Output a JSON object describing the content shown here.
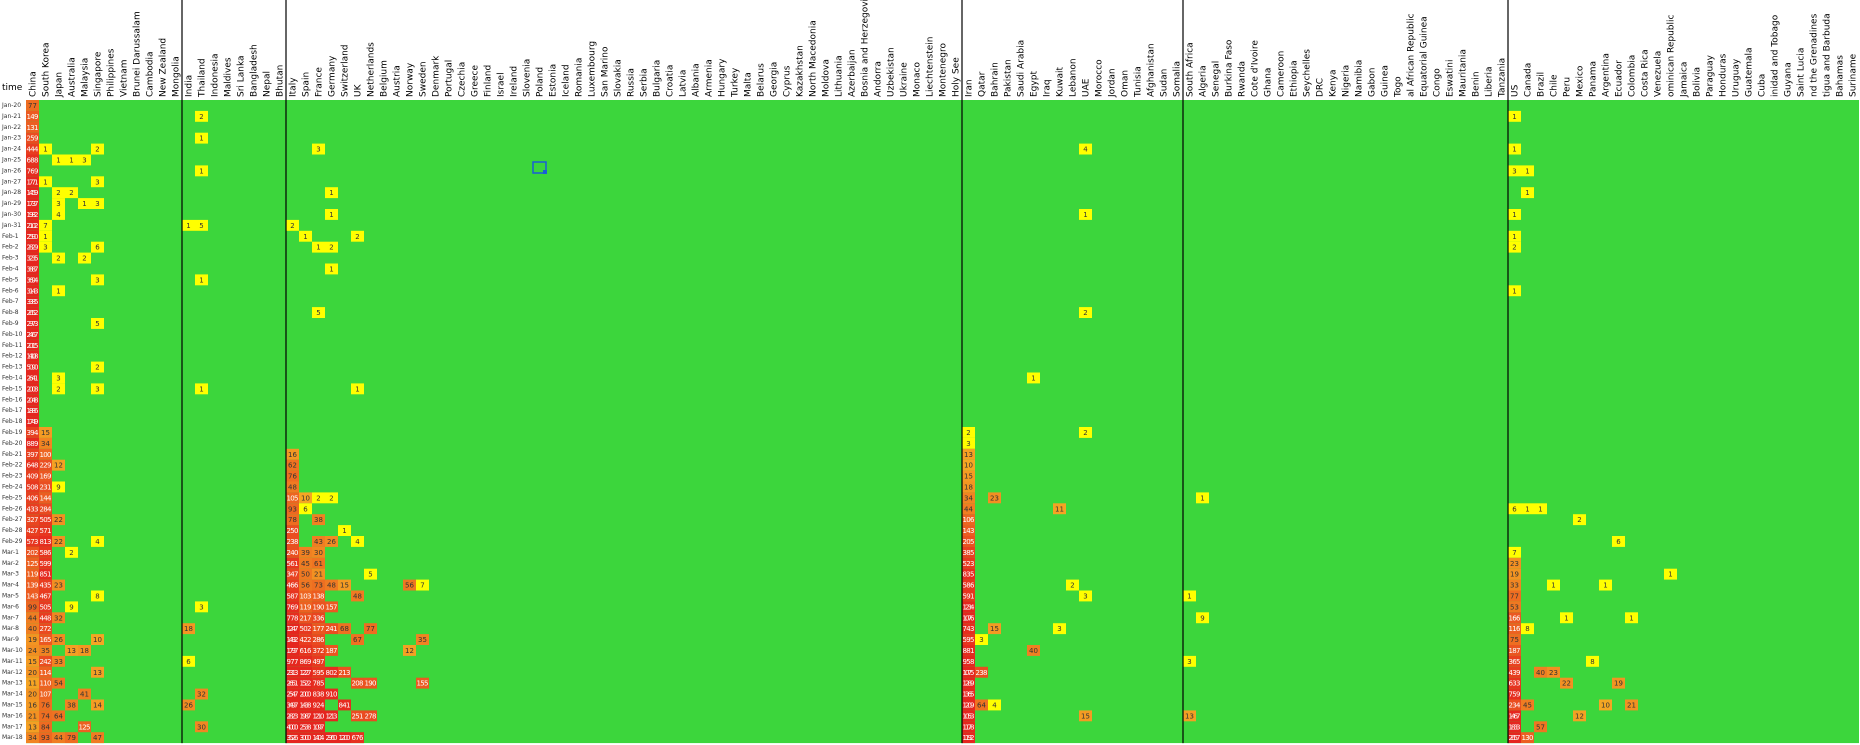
{
  "time_label": "time",
  "dates": [
    "Jan-20",
    "Jan-21",
    "Jan-22",
    "Jan-23",
    "Jan-24",
    "Jan-25",
    "Jan-26",
    "Jan-27",
    "Jan-28",
    "Jan-29",
    "Jan-30",
    "Jan-31",
    "Feb-1",
    "Feb-2",
    "Feb-3",
    "Feb-4",
    "Feb-5",
    "Feb-6",
    "Feb-7",
    "Feb-8",
    "Feb-9",
    "Feb-10",
    "Feb-11",
    "Feb-12",
    "Feb-13",
    "Feb-14",
    "Feb-15",
    "Feb-16",
    "Feb-17",
    "Feb-18",
    "Feb-19",
    "Feb-20",
    "Feb-21",
    "Feb-22",
    "Feb-23",
    "Feb-24",
    "Feb-25",
    "Feb-26",
    "Feb-27",
    "Feb-28",
    "Feb-29",
    "Mar-1",
    "Mar-2",
    "Mar-3",
    "Mar-4",
    "Mar-5",
    "Mar-6",
    "Mar-7",
    "Mar-8",
    "Mar-9",
    "Mar-10",
    "Mar-11",
    "Mar-12",
    "Mar-13",
    "Mar-14",
    "Mar-15",
    "Mar-16",
    "Mar-17",
    "Mar-18"
  ],
  "groups": [
    {
      "countries": [
        "China",
        "South Korea",
        "Japan",
        "Australia",
        "Malaysia",
        "Singapore",
        "Philippines",
        "Vietnam",
        "Brunei Darussalam",
        "Cambodia",
        "New Zealand",
        "Mongolia"
      ]
    },
    {
      "countries": [
        "India",
        "Thailand",
        "Indonesia",
        "Maldives",
        "Sri Lanka",
        "Bangladesh",
        "Nepal",
        "Bhutan"
      ]
    },
    {
      "countries": [
        "Italy",
        "Spain",
        "France",
        "Germany",
        "Switzerland",
        "UK",
        "Netherlands",
        "Belgium",
        "Austria",
        "Norway",
        "Sweden",
        "Denmark",
        "Portugal",
        "Czechia",
        "Greece",
        "Finland",
        "Israel",
        "Ireland",
        "Slovenia",
        "Poland",
        "Estonia",
        "Iceland",
        "Romania",
        "Luxembourg",
        "San Marino",
        "Slovakia",
        "Russia",
        "Serbia",
        "Bulgaria",
        "Croatia",
        "Latvia",
        "Albania",
        "Armenia",
        "Hungary",
        "Turkey",
        "Malta",
        "Belarus",
        "Georgia",
        "Cyprus",
        "Kazakhstan",
        "North Macedonia",
        "Moldova",
        "Lithuania",
        "Azerbaijan",
        "Bosnia and Herzegovina",
        "Andorra",
        "Uzbekistan",
        "Ukraine",
        "Monaco",
        "Liechtenstein",
        "Montenegro",
        "Holy See"
      ]
    },
    {
      "countries": [
        "Iran",
        "Qatar",
        "Bahrain",
        "Pakistan",
        "Saudi Arabia",
        "Egypt",
        "Iraq",
        "Kuwait",
        "Lebanon",
        "UAE",
        "Morocco",
        "Jordan",
        "Oman",
        "Tunisia",
        "Afghanistan",
        "Sudan",
        "Somalia"
      ]
    },
    {
      "countries": [
        "South Africa",
        "Algeria",
        "Senegal",
        "Burkina Faso",
        "Rwanda",
        "Cote d'Ivoire",
        "Ghana",
        "Cameroon",
        "Ethiopia",
        "Seychelles",
        "DRC",
        "Kenya",
        "Nigeria",
        "Namibia",
        "Gabon",
        "Guinea",
        "Togo",
        "al African Republic",
        "Equatorial Guinea",
        "Congo",
        "Eswatini",
        "Mauritania",
        "Benin",
        "Liberia",
        "Tanzania"
      ]
    },
    {
      "countries": [
        "US",
        "Canada",
        "Brazil",
        "Chile",
        "Peru",
        "Mexico",
        "Panama",
        "Argentina",
        "Ecuador",
        "Colombia",
        "Costa Rica",
        "Venezuela",
        "ominican Republic",
        "Jamaica",
        "Bolivia",
        "Paraguay",
        "Honduras",
        "Uruguay",
        "Guatemala",
        "Cuba",
        "inidad and Tobago",
        "Guyana",
        "Saint Lucia",
        "nd the Grenadines",
        "tigua and Barbuda",
        "Bahamas",
        "Suriname"
      ]
    }
  ],
  "colors": {
    "background": "#3cd63c",
    "low": "#ffff00",
    "mid": "#f5a623",
    "high": "#e5261f"
  },
  "cells": [
    [
      0,
      0,
      77
    ],
    [
      1,
      0,
      149
    ],
    [
      2,
      0,
      131
    ],
    [
      3,
      0,
      259
    ],
    [
      4,
      0,
      444
    ],
    [
      5,
      0,
      688
    ],
    [
      6,
      0,
      769
    ],
    [
      7,
      0,
      1771
    ],
    [
      8,
      0,
      1459
    ],
    [
      9,
      0,
      1737
    ],
    [
      10,
      0,
      1982
    ],
    [
      11,
      0,
      2102
    ],
    [
      12,
      0,
      2590
    ],
    [
      13,
      0,
      2829
    ],
    [
      14,
      0,
      3235
    ],
    [
      15,
      0,
      3887
    ],
    [
      16,
      0,
      3694
    ],
    [
      17,
      0,
      3143
    ],
    [
      18,
      0,
      3385
    ],
    [
      19,
      0,
      2652
    ],
    [
      20,
      0,
      2973
    ],
    [
      21,
      0,
      2467
    ],
    [
      22,
      0,
      2015
    ],
    [
      23,
      0,
      14108
    ],
    [
      24,
      0,
      5090
    ],
    [
      25,
      0,
      2641
    ],
    [
      26,
      0,
      2008
    ],
    [
      27,
      0,
      2048
    ],
    [
      28,
      0,
      1886
    ],
    [
      29,
      0,
      1749
    ],
    [
      30,
      0,
      394
    ],
    [
      31,
      0,
      889
    ],
    [
      32,
      0,
      397
    ],
    [
      33,
      0,
      648
    ],
    [
      34,
      0,
      409
    ],
    [
      35,
      0,
      508
    ],
    [
      36,
      0,
      406
    ],
    [
      37,
      0,
      433
    ],
    [
      38,
      0,
      327
    ],
    [
      39,
      0,
      427
    ],
    [
      40,
      0,
      573
    ],
    [
      41,
      0,
      202
    ],
    [
      42,
      0,
      125
    ],
    [
      43,
      0,
      119
    ],
    [
      44,
      0,
      139
    ],
    [
      45,
      0,
      143
    ],
    [
      46,
      0,
      99
    ],
    [
      47,
      0,
      44
    ],
    [
      48,
      0,
      40
    ],
    [
      49,
      0,
      19
    ],
    [
      50,
      0,
      24
    ],
    [
      51,
      0,
      15
    ],
    [
      52,
      0,
      20
    ],
    [
      53,
      0,
      11
    ],
    [
      54,
      0,
      20
    ],
    [
      55,
      0,
      16
    ],
    [
      56,
      0,
      21
    ],
    [
      57,
      0,
      13
    ],
    [
      58,
      0,
      34
    ],
    [
      4,
      1,
      1
    ],
    [
      7,
      1,
      1
    ],
    [
      11,
      1,
      7
    ],
    [
      12,
      1,
      1
    ],
    [
      13,
      1,
      3
    ],
    [
      30,
      1,
      15
    ],
    [
      31,
      1,
      34
    ],
    [
      32,
      1,
      100
    ],
    [
      33,
      1,
      229
    ],
    [
      34,
      1,
      169
    ],
    [
      35,
      1,
      231
    ],
    [
      36,
      1,
      144
    ],
    [
      37,
      1,
      284
    ],
    [
      38,
      1,
      505
    ],
    [
      39,
      1,
      571
    ],
    [
      40,
      1,
      813
    ],
    [
      41,
      1,
      586
    ],
    [
      42,
      1,
      599
    ],
    [
      43,
      1,
      851
    ],
    [
      44,
      1,
      435
    ],
    [
      45,
      1,
      467
    ],
    [
      46,
      1,
      505
    ],
    [
      47,
      1,
      448
    ],
    [
      48,
      1,
      272
    ],
    [
      49,
      1,
      165
    ],
    [
      50,
      1,
      35
    ],
    [
      51,
      1,
      242
    ],
    [
      52,
      1,
      114
    ],
    [
      53,
      1,
      110
    ],
    [
      54,
      1,
      107
    ],
    [
      55,
      1,
      76
    ],
    [
      56,
      1,
      74
    ],
    [
      57,
      1,
      84
    ],
    [
      58,
      1,
      93
    ],
    [
      5,
      2,
      1
    ],
    [
      8,
      2,
      2
    ],
    [
      9,
      2,
      3
    ],
    [
      10,
      2,
      4
    ],
    [
      14,
      2,
      2
    ],
    [
      17,
      2,
      1
    ],
    [
      25,
      2,
      3
    ],
    [
      26,
      2,
      2
    ],
    [
      33,
      2,
      12
    ],
    [
      35,
      2,
      9
    ],
    [
      38,
      2,
      22
    ],
    [
      40,
      2,
      22
    ],
    [
      44,
      2,
      23
    ],
    [
      47,
      2,
      32
    ],
    [
      49,
      2,
      26
    ],
    [
      51,
      2,
      33
    ],
    [
      53,
      2,
      54
    ],
    [
      56,
      2,
      64
    ],
    [
      58,
      2,
      44
    ],
    [
      5,
      3,
      1
    ],
    [
      8,
      3,
      2
    ],
    [
      41,
      3,
      2
    ],
    [
      46,
      3,
      9
    ],
    [
      50,
      3,
      13
    ],
    [
      55,
      3,
      38
    ],
    [
      58,
      3,
      79
    ],
    [
      5,
      4,
      3
    ],
    [
      9,
      4,
      1
    ],
    [
      14,
      4,
      2
    ],
    [
      50,
      4,
      18
    ],
    [
      54,
      4,
      41
    ],
    [
      57,
      4,
      125
    ],
    [
      4,
      5,
      2
    ],
    [
      7,
      5,
      3
    ],
    [
      9,
      5,
      3
    ],
    [
      13,
      5,
      6
    ],
    [
      16,
      5,
      3
    ],
    [
      20,
      5,
      5
    ],
    [
      24,
      5,
      2
    ],
    [
      26,
      5,
      3
    ],
    [
      40,
      5,
      4
    ],
    [
      45,
      5,
      8
    ],
    [
      49,
      5,
      10
    ],
    [
      52,
      5,
      13
    ],
    [
      55,
      5,
      14
    ],
    [
      58,
      5,
      47
    ],
    [
      11,
      12,
      1
    ],
    [
      48,
      12,
      18
    ],
    [
      51,
      12,
      6
    ],
    [
      55,
      12,
      26
    ],
    [
      1,
      13,
      2
    ],
    [
      3,
      13,
      1
    ],
    [
      6,
      13,
      1
    ],
    [
      11,
      13,
      5
    ],
    [
      16,
      13,
      1
    ],
    [
      26,
      13,
      1
    ],
    [
      46,
      13,
      3
    ],
    [
      54,
      13,
      32
    ],
    [
      57,
      13,
      30
    ],
    [
      11,
      20,
      2
    ],
    [
      32,
      20,
      16
    ],
    [
      33,
      20,
      62
    ],
    [
      34,
      20,
      76
    ],
    [
      35,
      20,
      48
    ],
    [
      36,
      20,
      105
    ],
    [
      37,
      20,
      93
    ],
    [
      38,
      20,
      78
    ],
    [
      39,
      20,
      250
    ],
    [
      40,
      20,
      238
    ],
    [
      41,
      20,
      240
    ],
    [
      42,
      20,
      561
    ],
    [
      43,
      20,
      347
    ],
    [
      44,
      20,
      466
    ],
    [
      45,
      20,
      587
    ],
    [
      46,
      20,
      769
    ],
    [
      47,
      20,
      778
    ],
    [
      48,
      20,
      1247
    ],
    [
      49,
      20,
      1492
    ],
    [
      50,
      20,
      1797
    ],
    [
      51,
      20,
      977
    ],
    [
      52,
      20,
      2313
    ],
    [
      53,
      20,
      2651
    ],
    [
      54,
      20,
      2547
    ],
    [
      55,
      20,
      3497
    ],
    [
      56,
      20,
      2823
    ],
    [
      57,
      20,
      4000
    ],
    [
      58,
      20,
      3526
    ],
    [
      12,
      21,
      1
    ],
    [
      36,
      21,
      10
    ],
    [
      37,
      21,
      6
    ],
    [
      41,
      21,
      39
    ],
    [
      42,
      21,
      45
    ],
    [
      43,
      21,
      50
    ],
    [
      44,
      21,
      56
    ],
    [
      45,
      21,
      103
    ],
    [
      46,
      21,
      119
    ],
    [
      47,
      21,
      217
    ],
    [
      48,
      21,
      502
    ],
    [
      49,
      21,
      422
    ],
    [
      50,
      21,
      616
    ],
    [
      51,
      21,
      869
    ],
    [
      52,
      21,
      1227
    ],
    [
      53,
      21,
      1522
    ],
    [
      54,
      21,
      2000
    ],
    [
      55,
      21,
      1438
    ],
    [
      56,
      21,
      1987
    ],
    [
      57,
      21,
      2538
    ],
    [
      58,
      21,
      3000
    ],
    [
      4,
      22,
      3
    ],
    [
      13,
      22,
      1
    ],
    [
      19,
      22,
      5
    ],
    [
      36,
      22,
      2
    ],
    [
      38,
      22,
      38
    ],
    [
      40,
      22,
      43
    ],
    [
      41,
      22,
      30
    ],
    [
      42,
      22,
      61
    ],
    [
      43,
      22,
      21
    ],
    [
      44,
      22,
      73
    ],
    [
      45,
      22,
      138
    ],
    [
      46,
      22,
      190
    ],
    [
      47,
      22,
      336
    ],
    [
      48,
      22,
      177
    ],
    [
      49,
      22,
      286
    ],
    [
      50,
      22,
      372
    ],
    [
      51,
      22,
      497
    ],
    [
      52,
      22,
      595
    ],
    [
      53,
      22,
      785
    ],
    [
      54,
      22,
      838
    ],
    [
      55,
      22,
      924
    ],
    [
      56,
      22,
      1210
    ],
    [
      57,
      22,
      1097
    ],
    [
      58,
      22,
      1404
    ],
    [
      8,
      23,
      1
    ],
    [
      10,
      23,
      1
    ],
    [
      13,
      23,
      2
    ],
    [
      15,
      23,
      1
    ],
    [
      36,
      23,
      2
    ],
    [
      40,
      23,
      26
    ],
    [
      44,
      23,
      48
    ],
    [
      46,
      23,
      157
    ],
    [
      48,
      23,
      241
    ],
    [
      50,
      23,
      187
    ],
    [
      52,
      23,
      802
    ],
    [
      54,
      23,
      910
    ],
    [
      56,
      23,
      1213
    ],
    [
      58,
      23,
      2960
    ],
    [
      39,
      24,
      1
    ],
    [
      44,
      24,
      15
    ],
    [
      48,
      24,
      68
    ],
    [
      52,
      24,
      213
    ],
    [
      55,
      24,
      841
    ],
    [
      58,
      24,
      1200
    ],
    [
      12,
      25,
      2
    ],
    [
      26,
      25,
      1
    ],
    [
      40,
      25,
      4
    ],
    [
      45,
      25,
      48
    ],
    [
      49,
      25,
      67
    ],
    [
      53,
      25,
      208
    ],
    [
      56,
      25,
      251
    ],
    [
      58,
      25,
      676
    ],
    [
      43,
      26,
      5
    ],
    [
      48,
      26,
      77
    ],
    [
      53,
      26,
      190
    ],
    [
      56,
      26,
      278
    ],
    [
      44,
      29,
      56
    ],
    [
      50,
      29,
      12
    ],
    [
      44,
      30,
      7
    ],
    [
      49,
      30,
      35
    ],
    [
      53,
      30,
      155
    ],
    [
      30,
      72,
      2
    ],
    [
      31,
      72,
      3
    ],
    [
      32,
      72,
      13
    ],
    [
      33,
      72,
      10
    ],
    [
      34,
      72,
      15
    ],
    [
      35,
      72,
      18
    ],
    [
      36,
      72,
      34
    ],
    [
      37,
      72,
      44
    ],
    [
      38,
      72,
      106
    ],
    [
      39,
      72,
      143
    ],
    [
      40,
      72,
      205
    ],
    [
      41,
      72,
      385
    ],
    [
      42,
      72,
      523
    ],
    [
      43,
      72,
      835
    ],
    [
      44,
      72,
      586
    ],
    [
      45,
      72,
      591
    ],
    [
      46,
      72,
      1234
    ],
    [
      47,
      72,
      1076
    ],
    [
      48,
      72,
      743
    ],
    [
      49,
      72,
      595
    ],
    [
      50,
      72,
      881
    ],
    [
      51,
      72,
      958
    ],
    [
      52,
      72,
      1075
    ],
    [
      53,
      72,
      1289
    ],
    [
      54,
      72,
      1365
    ],
    [
      55,
      72,
      1209
    ],
    [
      56,
      72,
      1053
    ],
    [
      57,
      72,
      1178
    ],
    [
      58,
      72,
      1192
    ],
    [
      49,
      73,
      3
    ],
    [
      52,
      73,
      238
    ],
    [
      55,
      73,
      64
    ],
    [
      36,
      74,
      23
    ],
    [
      48,
      74,
      15
    ],
    [
      55,
      74,
      4
    ],
    [
      25,
      77,
      1
    ],
    [
      50,
      77,
      40
    ],
    [
      37,
      79,
      11
    ],
    [
      48,
      79,
      3
    ],
    [
      44,
      80,
      2
    ],
    [
      4,
      81,
      4
    ],
    [
      10,
      81,
      1
    ],
    [
      19,
      81,
      2
    ],
    [
      30,
      81,
      2
    ],
    [
      45,
      81,
      3
    ],
    [
      56,
      81,
      15
    ],
    [
      45,
      89,
      1
    ],
    [
      51,
      89,
      3
    ],
    [
      56,
      89,
      13
    ],
    [
      36,
      90,
      1
    ],
    [
      47,
      90,
      9
    ],
    [
      1,
      114,
      1
    ],
    [
      4,
      114,
      1
    ],
    [
      6,
      114,
      3
    ],
    [
      10,
      114,
      1
    ],
    [
      12,
      114,
      1
    ],
    [
      13,
      114,
      2
    ],
    [
      17,
      114,
      1
    ],
    [
      37,
      114,
      6
    ],
    [
      41,
      114,
      7
    ],
    [
      42,
      114,
      23
    ],
    [
      43,
      114,
      19
    ],
    [
      44,
      114,
      33
    ],
    [
      45,
      114,
      77
    ],
    [
      46,
      114,
      53
    ],
    [
      47,
      114,
      166
    ],
    [
      48,
      114,
      116
    ],
    [
      49,
      114,
      75
    ],
    [
      50,
      114,
      187
    ],
    [
      51,
      114,
      365
    ],
    [
      52,
      114,
      439
    ],
    [
      53,
      114,
      633
    ],
    [
      54,
      114,
      759
    ],
    [
      55,
      114,
      234
    ],
    [
      56,
      114,
      1467
    ],
    [
      57,
      114,
      1833
    ],
    [
      58,
      114,
      2657
    ],
    [
      6,
      115,
      1
    ],
    [
      8,
      115,
      1
    ],
    [
      37,
      115,
      1
    ],
    [
      48,
      115,
      8
    ],
    [
      55,
      115,
      45
    ],
    [
      58,
      115,
      130
    ],
    [
      37,
      116,
      1
    ],
    [
      52,
      116,
      40
    ],
    [
      57,
      116,
      57
    ],
    [
      44,
      117,
      1
    ],
    [
      52,
      117,
      23
    ],
    [
      47,
      118,
      1
    ],
    [
      53,
      118,
      22
    ],
    [
      38,
      119,
      2
    ],
    [
      56,
      119,
      12
    ],
    [
      51,
      120,
      8
    ],
    [
      44,
      121,
      1
    ],
    [
      55,
      121,
      10
    ],
    [
      40,
      122,
      6
    ],
    [
      53,
      122,
      19
    ],
    [
      47,
      123,
      1
    ],
    [
      55,
      123,
      21
    ],
    [
      43,
      126,
      1
    ]
  ]
}
